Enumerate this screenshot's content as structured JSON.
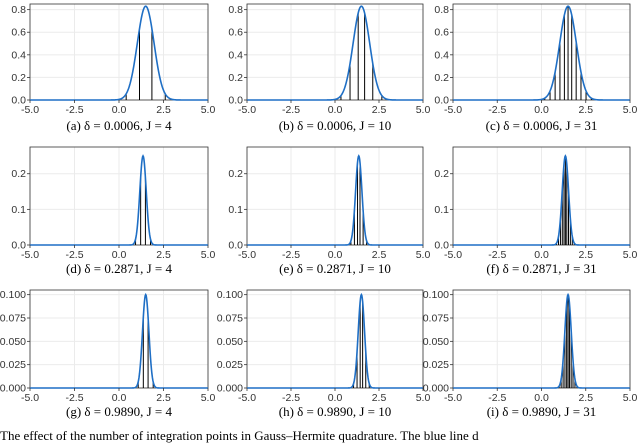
{
  "footer_text": "The effect of the number of integration points in Gauss–Hermite quadrature. The blue line d",
  "chart_data": [
    {
      "type": "line",
      "caption": "(a)  δ = 0.0006, J = 4",
      "delta": 0.0006,
      "J": 4,
      "mean": 1.5,
      "sd": 0.47,
      "x": [
        -5,
        5
      ],
      "xlim": [
        -5,
        5
      ],
      "ylim": [
        0,
        0.85
      ],
      "xticks": [
        -5,
        -2.5,
        0,
        2.5,
        5
      ],
      "xtick_labels": [
        "-5.0",
        "-2.5",
        "0.0",
        "2.5",
        "5.0"
      ],
      "yticks": [
        0,
        0.2,
        0.4,
        0.6,
        0.8
      ],
      "ytick_labels": [
        "0.0",
        "0.2",
        "0.4",
        "0.6",
        "0.8"
      ],
      "line_color": "#1f6fc5",
      "stem_color": "#000000",
      "grid": true
    },
    {
      "type": "line",
      "caption": "(b)  δ = 0.0006, J = 10",
      "delta": 0.0006,
      "J": 10,
      "mean": 1.5,
      "sd": 0.47,
      "xlim": [
        -5,
        5
      ],
      "ylim": [
        0,
        0.85
      ],
      "xticks": [
        -5,
        -2.5,
        0,
        2.5,
        5
      ],
      "xtick_labels": [
        "-5.0",
        "-2.5",
        "0.0",
        "2.5",
        "5.0"
      ],
      "yticks": [
        0,
        0.2,
        0.4,
        0.6,
        0.8
      ],
      "ytick_labels": [
        "0.0",
        "0.2",
        "0.4",
        "0.6",
        "0.8"
      ],
      "line_color": "#1f6fc5",
      "stem_color": "#000000",
      "grid": true
    },
    {
      "type": "line",
      "caption": "(c)  δ = 0.0006, J = 31",
      "delta": 0.0006,
      "J": 31,
      "mean": 1.5,
      "sd": 0.47,
      "xlim": [
        -5,
        5
      ],
      "ylim": [
        0,
        0.85
      ],
      "xticks": [
        -5,
        -2.5,
        0,
        2.5,
        5
      ],
      "xtick_labels": [
        "-5.0",
        "-2.5",
        "0.0",
        "2.5",
        "5.0"
      ],
      "yticks": [
        0,
        0.2,
        0.4,
        0.6,
        0.8
      ],
      "ytick_labels": [
        "0.0",
        "0.2",
        "0.4",
        "0.6",
        "0.8"
      ],
      "line_color": "#1f6fc5",
      "stem_color": "#000000",
      "grid": true
    },
    {
      "type": "line",
      "caption": "(d)  δ = 0.2871, J = 4",
      "delta": 0.2871,
      "J": 4,
      "mean": 1.35,
      "sd": 0.18,
      "xlim": [
        -5,
        5
      ],
      "ylim": [
        0,
        0.275
      ],
      "xticks": [
        -5,
        -2.5,
        0,
        2.5,
        5
      ],
      "xtick_labels": [
        "-5.0",
        "-2.5",
        "0.0",
        "2.5",
        "5.0"
      ],
      "yticks": [
        0,
        0.1,
        0.2
      ],
      "ytick_labels": [
        "0.0",
        "0.1",
        "0.2"
      ],
      "line_color": "#1f6fc5",
      "stem_color": "#000000",
      "grid": true
    },
    {
      "type": "line",
      "caption": "(e)  δ = 0.2871, J = 10",
      "delta": 0.2871,
      "J": 10,
      "mean": 1.35,
      "sd": 0.18,
      "xlim": [
        -5,
        5
      ],
      "ylim": [
        0,
        0.275
      ],
      "xticks": [
        -5,
        -2.5,
        0,
        2.5,
        5
      ],
      "xtick_labels": [
        "-5.0",
        "-2.5",
        "0.0",
        "2.5",
        "5.0"
      ],
      "yticks": [
        0,
        0.1,
        0.2
      ],
      "ytick_labels": [
        "0.0",
        "0.1",
        "0.2"
      ],
      "line_color": "#1f6fc5",
      "stem_color": "#000000",
      "grid": true
    },
    {
      "type": "line",
      "caption": "(f)  δ = 0.2871, J = 31",
      "delta": 0.2871,
      "J": 31,
      "mean": 1.35,
      "sd": 0.18,
      "xlim": [
        -5,
        5
      ],
      "ylim": [
        0,
        0.275
      ],
      "xticks": [
        -5,
        -2.5,
        0,
        2.5,
        5
      ],
      "xtick_labels": [
        "-5.0",
        "-2.5",
        "0.0",
        "2.5",
        "5.0"
      ],
      "yticks": [
        0,
        0.1,
        0.2
      ],
      "ytick_labels": [
        "0.0",
        "0.1",
        "0.2"
      ],
      "line_color": "#1f6fc5",
      "stem_color": "#000000",
      "grid": true
    },
    {
      "type": "line",
      "caption": "(g)  δ = 0.9890, J = 4",
      "delta": 0.989,
      "J": 4,
      "mean": 1.5,
      "sd": 0.18,
      "xlim": [
        -5,
        5
      ],
      "ylim": [
        0,
        0.105
      ],
      "xticks": [
        -5,
        -2.5,
        0,
        2.5,
        5
      ],
      "xtick_labels": [
        "-5.0",
        "-2.5",
        "0.0",
        "2.5",
        "5.0"
      ],
      "yticks": [
        0,
        0.025,
        0.05,
        0.075,
        0.1
      ],
      "ytick_labels": [
        "0.000",
        "0.025",
        "0.050",
        "0.075",
        "0.100"
      ],
      "line_color": "#1f6fc5",
      "stem_color": "#000000",
      "grid": true
    },
    {
      "type": "line",
      "caption": "(h)  δ = 0.9890, J = 10",
      "delta": 0.989,
      "J": 10,
      "mean": 1.5,
      "sd": 0.18,
      "xlim": [
        -5,
        5
      ],
      "ylim": [
        0,
        0.105
      ],
      "xticks": [
        -5,
        -2.5,
        0,
        2.5,
        5
      ],
      "xtick_labels": [
        "-5.0",
        "-2.5",
        "0.0",
        "2.5",
        "5.0"
      ],
      "yticks": [
        0,
        0.025,
        0.05,
        0.075,
        0.1
      ],
      "ytick_labels": [
        "0.000",
        "0.025",
        "0.050",
        "0.075",
        "0.100"
      ],
      "line_color": "#1f6fc5",
      "stem_color": "#000000",
      "grid": true
    },
    {
      "type": "line",
      "caption": "(i)  δ = 0.9890, J = 31",
      "delta": 0.989,
      "J": 31,
      "mean": 1.5,
      "sd": 0.18,
      "xlim": [
        -5,
        5
      ],
      "ylim": [
        0,
        0.105
      ],
      "xticks": [
        -5,
        -2.5,
        0,
        2.5,
        5
      ],
      "xtick_labels": [
        "-5.0",
        "-2.5",
        "0.0",
        "2.5",
        "5.0"
      ],
      "yticks": [
        0,
        0.025,
        0.05,
        0.075,
        0.1
      ],
      "ytick_labels": [
        "0.000",
        "0.025",
        "0.050",
        "0.075",
        "0.100"
      ],
      "line_color": "#1f6fc5",
      "stem_color": "#000000",
      "grid": true
    }
  ]
}
